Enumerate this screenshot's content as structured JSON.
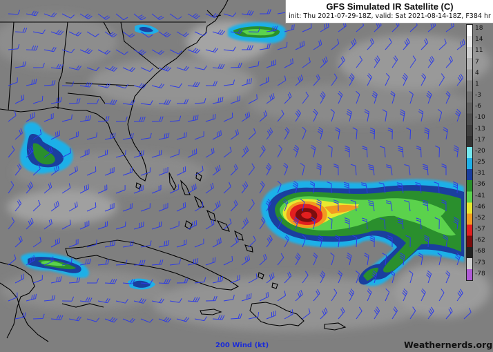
{
  "header": {
    "title": "GFS Simulated IR Satellite (C)",
    "subtitle": "init: Thu 2021-07-29-18Z, valid: Sat 2021-08-14-18Z, F384 hr"
  },
  "colorbar": {
    "ticks": [
      "18",
      "14",
      "11",
      "7",
      "4",
      "1",
      "-3",
      "-6",
      "-10",
      "-13",
      "-17",
      "-20",
      "-25",
      "-31",
      "-36",
      "-41",
      "-46",
      "-52",
      "-57",
      "-62",
      "-68",
      "-73",
      "-78"
    ],
    "stops": [
      "#ffffff",
      "#e8e8e8",
      "#cfcfcf",
      "#b5b5b5",
      "#9d9d9d",
      "#858585",
      "#707070",
      "#5f5f5f",
      "#4e4e4e",
      "#3f3f3f",
      "#333333",
      "#74e9ef",
      "#1fb0e8",
      "#1a3f9e",
      "#2a8f2d",
      "#5bd24c",
      "#e9e82f",
      "#f29a20",
      "#e21f1f",
      "#7c0d0d",
      "#222222",
      "#cfcfcf",
      "#b05bd6"
    ]
  },
  "overlay": {
    "wind_label": "200 Wind (kt)",
    "watermark": "Weathernerds.org"
  },
  "colors": {
    "background_gray": "#7d7d7d",
    "coastline": "#000000",
    "wind_barb": "#2d3be6"
  },
  "map_features": {
    "storm": "tropical-cyclone-east-of-bahamas",
    "wind_barbs": "200-hPa-wind-barbs"
  }
}
